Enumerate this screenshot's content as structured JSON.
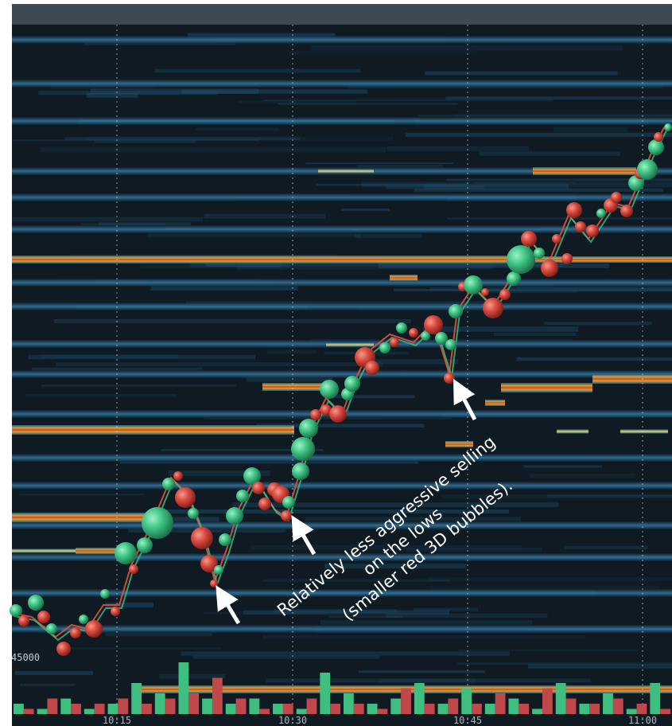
{
  "chart_data": {
    "type": "heatmap",
    "title": "",
    "xlabel": "",
    "ylabel": "",
    "x_ticks": [
      "10:15",
      "10:30",
      "10:45",
      "11:00"
    ],
    "price_label": "45000",
    "grid": "vertical dotted lines at time ticks",
    "annotation": {
      "lines": [
        "Relatively less aggressive selling",
        "on the lows",
        "(smaller red 3D bubbles)."
      ]
    },
    "bubble_series": [
      {
        "color": "green",
        "meaning": "buy volume bubbles"
      },
      {
        "color": "red",
        "meaning": "sell volume bubbles"
      }
    ],
    "volume_bars": {
      "colors": {
        "buy": "#3fbf7f",
        "sell": "#c0474a"
      },
      "values": [
        {
          "t": 0,
          "buy": 2,
          "sell": 1
        },
        {
          "t": 1,
          "buy": 1,
          "sell": 3
        },
        {
          "t": 2,
          "buy": 3,
          "sell": 2
        },
        {
          "t": 3,
          "buy": 1,
          "sell": 2
        },
        {
          "t": 4,
          "buy": 2,
          "sell": 3
        },
        {
          "t": 5,
          "buy": 6,
          "sell": 2
        },
        {
          "t": 6,
          "buy": 4,
          "sell": 3
        },
        {
          "t": 7,
          "buy": 10,
          "sell": 4
        },
        {
          "t": 8,
          "buy": 3,
          "sell": 7
        },
        {
          "t": 9,
          "buy": 2,
          "sell": 3
        },
        {
          "t": 10,
          "buy": 3,
          "sell": 1
        },
        {
          "t": 11,
          "buy": 2,
          "sell": 2
        },
        {
          "t": 12,
          "buy": 1,
          "sell": 3
        },
        {
          "t": 13,
          "buy": 8,
          "sell": 2
        },
        {
          "t": 14,
          "buy": 4,
          "sell": 2
        },
        {
          "t": 15,
          "buy": 2,
          "sell": 1
        },
        {
          "t": 16,
          "buy": 3,
          "sell": 5
        },
        {
          "t": 17,
          "buy": 6,
          "sell": 2
        },
        {
          "t": 18,
          "buy": 2,
          "sell": 3
        },
        {
          "t": 19,
          "buy": 5,
          "sell": 2
        },
        {
          "t": 20,
          "buy": 2,
          "sell": 4
        },
        {
          "t": 21,
          "buy": 3,
          "sell": 2
        },
        {
          "t": 22,
          "buy": 1,
          "sell": 5
        },
        {
          "t": 23,
          "buy": 6,
          "sell": 3
        },
        {
          "t": 24,
          "buy": 2,
          "sell": 2
        },
        {
          "t": 25,
          "buy": 4,
          "sell": 3
        },
        {
          "t": 26,
          "buy": 1,
          "sell": 2
        },
        {
          "t": 27,
          "buy": 6,
          "sell": 1
        }
      ]
    }
  }
}
